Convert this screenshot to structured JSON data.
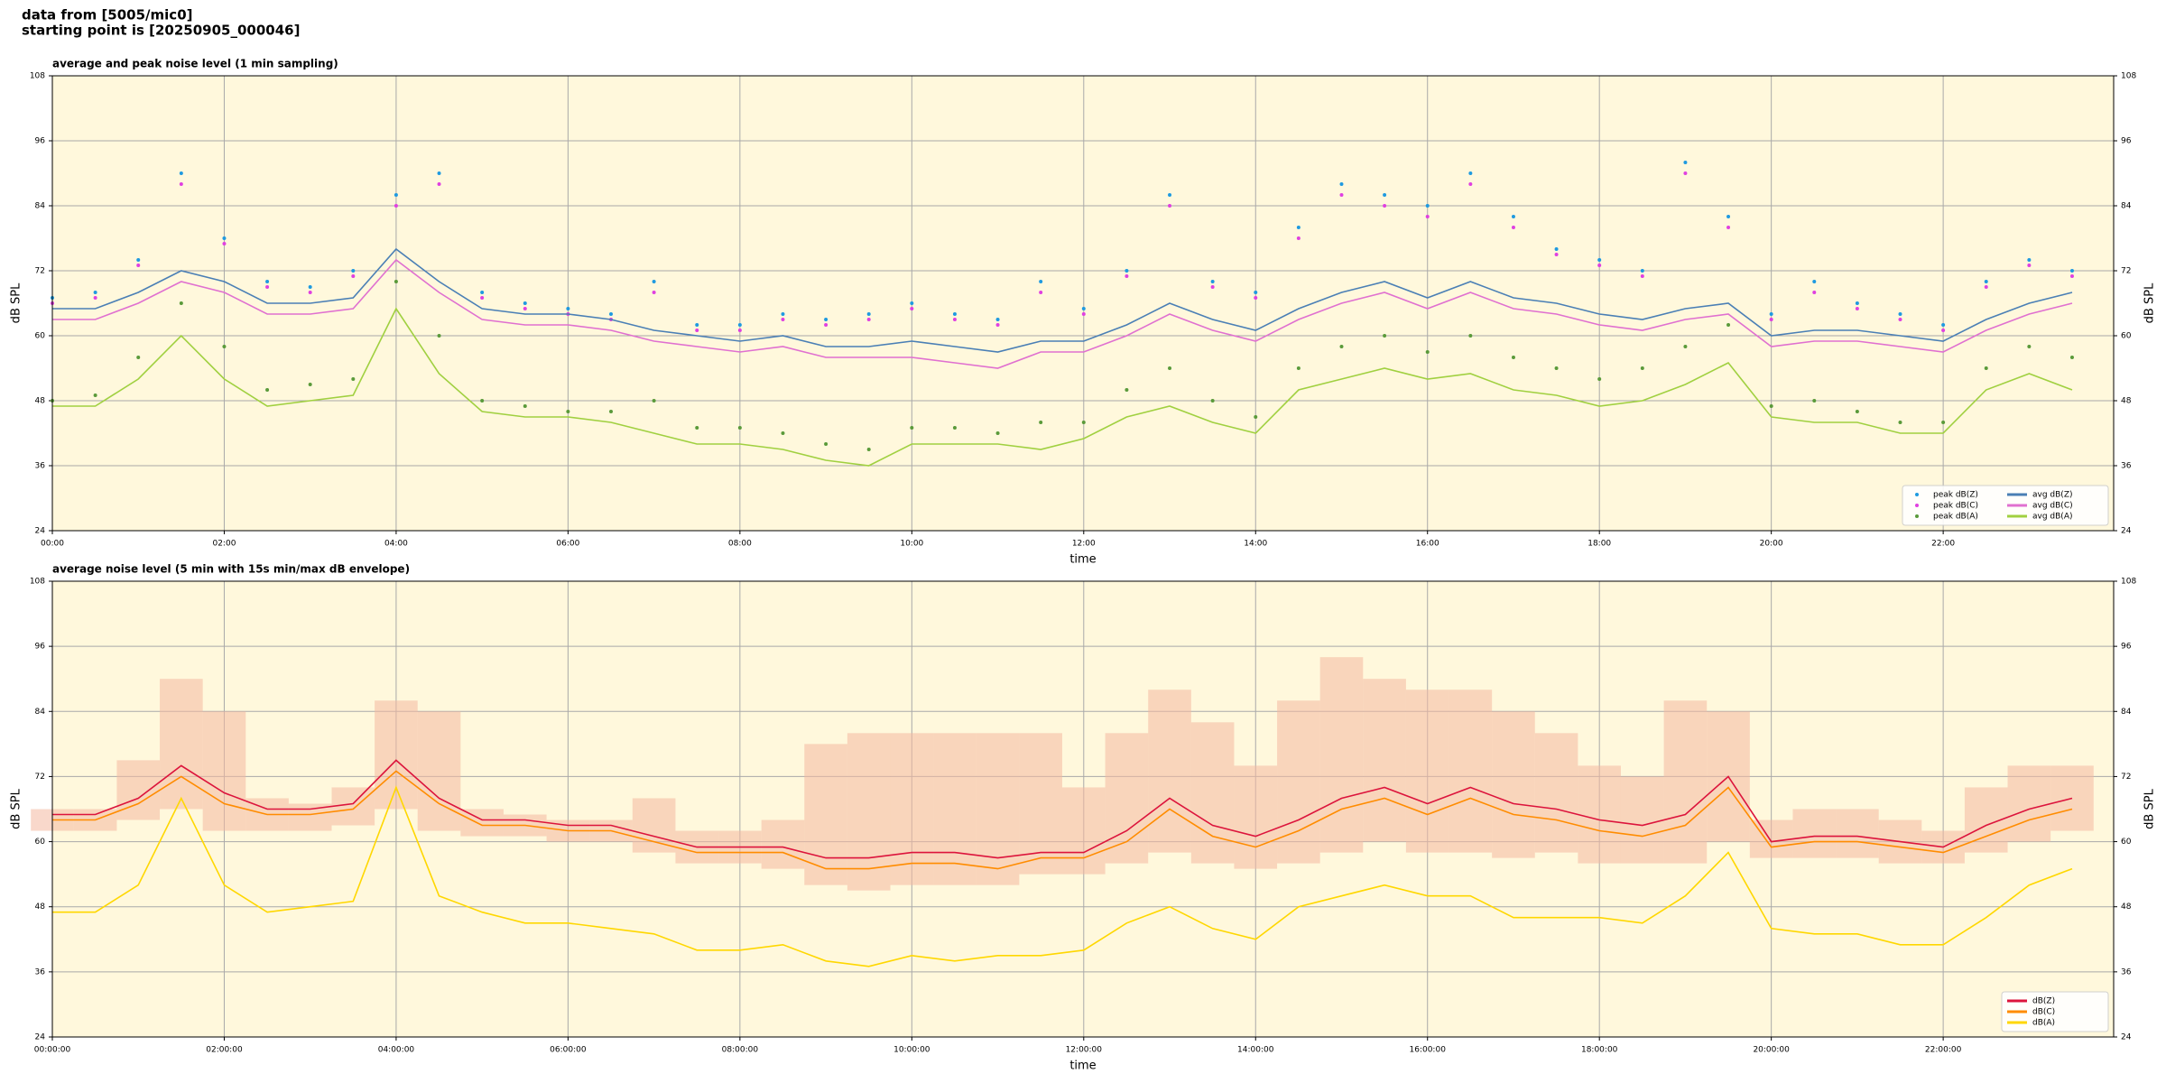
{
  "header": {
    "lines": [
      "data from [5005/mic0]",
      "starting point is [20250905_000046]"
    ]
  },
  "chart_data": [
    {
      "type": "line",
      "title": "average and peak noise level (1 min sampling)",
      "xlabel": "time",
      "ylabel": "dB SPL",
      "x": [
        "00:00",
        "00:30",
        "01:00",
        "01:30",
        "02:00",
        "02:30",
        "03:00",
        "03:30",
        "04:00",
        "04:30",
        "05:00",
        "05:30",
        "06:00",
        "06:30",
        "07:00",
        "07:30",
        "08:00",
        "08:30",
        "09:00",
        "09:30",
        "10:00",
        "10:30",
        "11:00",
        "11:30",
        "12:00",
        "12:30",
        "13:00",
        "13:30",
        "14:00",
        "14:30",
        "15:00",
        "15:30",
        "16:00",
        "16:30",
        "17:00",
        "17:30",
        "18:00",
        "18:30",
        "19:00",
        "19:30",
        "20:00",
        "20:30",
        "21:00",
        "21:30",
        "22:00",
        "22:30",
        "23:00",
        "23:30"
      ],
      "xlim": [
        "00:00",
        "23:59"
      ],
      "xticks": [
        "00:00",
        "02:00",
        "04:00",
        "06:00",
        "08:00",
        "10:00",
        "12:00",
        "14:00",
        "16:00",
        "18:00",
        "20:00",
        "22:00"
      ],
      "ylim": [
        24,
        108
      ],
      "yticks": [
        24,
        36,
        48,
        60,
        72,
        84,
        96,
        108
      ],
      "grid": true,
      "background": "#fff8dc",
      "legend": "lower right",
      "series": [
        {
          "name": "peak dB(Z)",
          "style": "scatter",
          "color": "#1f9ae0",
          "values": [
            67,
            68,
            74,
            90,
            78,
            70,
            69,
            72,
            86,
            90,
            68,
            66,
            65,
            64,
            70,
            62,
            62,
            64,
            63,
            64,
            66,
            64,
            63,
            70,
            65,
            72,
            86,
            70,
            68,
            80,
            88,
            86,
            84,
            90,
            82,
            76,
            74,
            72,
            92,
            82,
            64,
            70,
            66,
            64,
            62,
            70,
            74,
            72
          ]
        },
        {
          "name": "peak dB(C)",
          "style": "scatter",
          "color": "#e040e0",
          "values": [
            66,
            67,
            73,
            88,
            77,
            69,
            68,
            71,
            84,
            88,
            67,
            65,
            64,
            63,
            68,
            61,
            61,
            63,
            62,
            63,
            65,
            63,
            62,
            68,
            64,
            71,
            84,
            69,
            67,
            78,
            86,
            84,
            82,
            88,
            80,
            75,
            73,
            71,
            90,
            80,
            63,
            68,
            65,
            63,
            61,
            69,
            73,
            71
          ]
        },
        {
          "name": "peak dB(A)",
          "style": "scatter",
          "color": "#5a9a3a",
          "values": [
            48,
            49,
            56,
            66,
            58,
            50,
            51,
            52,
            70,
            60,
            48,
            47,
            46,
            46,
            48,
            43,
            43,
            42,
            40,
            39,
            43,
            43,
            42,
            44,
            44,
            50,
            54,
            48,
            45,
            54,
            58,
            60,
            57,
            60,
            56,
            54,
            52,
            54,
            58,
            62,
            47,
            48,
            46,
            44,
            44,
            54,
            58,
            56
          ]
        },
        {
          "name": "avg dB(Z)",
          "style": "line",
          "color": "#4a7fb5",
          "values": [
            65,
            65,
            68,
            72,
            70,
            66,
            66,
            67,
            76,
            70,
            65,
            64,
            64,
            63,
            61,
            60,
            59,
            60,
            58,
            58,
            59,
            58,
            57,
            59,
            59,
            62,
            66,
            63,
            61,
            65,
            68,
            70,
            67,
            70,
            67,
            66,
            64,
            63,
            65,
            66,
            60,
            61,
            61,
            60,
            59,
            63,
            66,
            68
          ]
        },
        {
          "name": "avg dB(C)",
          "style": "line",
          "color": "#e070d0",
          "values": [
            63,
            63,
            66,
            70,
            68,
            64,
            64,
            65,
            74,
            68,
            63,
            62,
            62,
            61,
            59,
            58,
            57,
            58,
            56,
            56,
            56,
            55,
            54,
            57,
            57,
            60,
            64,
            61,
            59,
            63,
            66,
            68,
            65,
            68,
            65,
            64,
            62,
            61,
            63,
            64,
            58,
            59,
            59,
            58,
            57,
            61,
            64,
            66
          ]
        },
        {
          "name": "avg dB(A)",
          "style": "line",
          "color": "#a0d040",
          "values": [
            47,
            47,
            52,
            60,
            52,
            47,
            48,
            49,
            65,
            53,
            46,
            45,
            45,
            44,
            42,
            40,
            40,
            39,
            37,
            36,
            40,
            40,
            40,
            39,
            41,
            45,
            47,
            44,
            42,
            50,
            52,
            54,
            52,
            53,
            50,
            49,
            47,
            48,
            51,
            55,
            45,
            44,
            44,
            42,
            42,
            50,
            53,
            50
          ]
        }
      ]
    },
    {
      "type": "line",
      "title": "average noise level (5 min with 15s min/max dB envelope)",
      "xlabel": "time",
      "ylabel": "dB SPL",
      "x": [
        "00:00:00",
        "00:30:00",
        "01:00:00",
        "01:30:00",
        "02:00:00",
        "02:30:00",
        "03:00:00",
        "03:30:00",
        "04:00:00",
        "04:30:00",
        "05:00:00",
        "05:30:00",
        "06:00:00",
        "06:30:00",
        "07:00:00",
        "07:30:00",
        "08:00:00",
        "08:30:00",
        "09:00:00",
        "09:30:00",
        "10:00:00",
        "10:30:00",
        "11:00:00",
        "11:30:00",
        "12:00:00",
        "12:30:00",
        "13:00:00",
        "13:30:00",
        "14:00:00",
        "14:30:00",
        "15:00:00",
        "15:30:00",
        "16:00:00",
        "16:30:00",
        "17:00:00",
        "17:30:00",
        "18:00:00",
        "18:30:00",
        "19:00:00",
        "19:30:00",
        "20:00:00",
        "20:30:00",
        "21:00:00",
        "21:30:00",
        "22:00:00",
        "22:30:00",
        "23:00:00",
        "23:30:00"
      ],
      "xlim": [
        "00:00:00",
        "23:59:00"
      ],
      "xticks": [
        "00:00:00",
        "02:00:00",
        "04:00:00",
        "06:00:00",
        "08:00:00",
        "10:00:00",
        "12:00:00",
        "14:00:00",
        "16:00:00",
        "18:00:00",
        "20:00:00",
        "22:00:00"
      ],
      "ylim": [
        24,
        108
      ],
      "yticks": [
        24,
        36,
        48,
        60,
        72,
        84,
        96,
        108
      ],
      "grid": true,
      "background": "#fff8dc",
      "legend": "lower right",
      "envelope": {
        "color": "#f4b8a0",
        "min": [
          62,
          62,
          64,
          66,
          62,
          62,
          62,
          63,
          66,
          62,
          61,
          61,
          60,
          60,
          58,
          56,
          56,
          55,
          52,
          51,
          52,
          52,
          52,
          54,
          54,
          56,
          58,
          56,
          55,
          56,
          58,
          60,
          58,
          58,
          57,
          58,
          56,
          56,
          56,
          60,
          57,
          57,
          57,
          56,
          56,
          58,
          60,
          62
        ],
        "max": [
          66,
          66,
          75,
          90,
          84,
          68,
          67,
          70,
          86,
          84,
          66,
          65,
          64,
          64,
          68,
          62,
          62,
          64,
          78,
          80,
          80,
          80,
          80,
          80,
          70,
          80,
          88,
          82,
          74,
          86,
          94,
          90,
          88,
          88,
          84,
          80,
          74,
          72,
          86,
          84,
          64,
          66,
          66,
          64,
          62,
          70,
          74,
          74
        ]
      },
      "series": [
        {
          "name": "dB(Z)",
          "style": "line",
          "color": "#dc143c",
          "values": [
            65,
            65,
            68,
            74,
            69,
            66,
            66,
            67,
            75,
            68,
            64,
            64,
            63,
            63,
            61,
            59,
            59,
            59,
            57,
            57,
            58,
            58,
            57,
            58,
            58,
            62,
            68,
            63,
            61,
            64,
            68,
            70,
            67,
            70,
            67,
            66,
            64,
            63,
            65,
            72,
            60,
            61,
            61,
            60,
            59,
            63,
            66,
            68
          ]
        },
        {
          "name": "dB(C)",
          "style": "line",
          "color": "#ff8c00",
          "values": [
            64,
            64,
            67,
            72,
            67,
            65,
            65,
            66,
            73,
            67,
            63,
            63,
            62,
            62,
            60,
            58,
            58,
            58,
            55,
            55,
            56,
            56,
            55,
            57,
            57,
            60,
            66,
            61,
            59,
            62,
            66,
            68,
            65,
            68,
            65,
            64,
            62,
            61,
            63,
            70,
            59,
            60,
            60,
            59,
            58,
            61,
            64,
            66
          ]
        },
        {
          "name": "dB(A)",
          "style": "line",
          "color": "#ffd700",
          "values": [
            47,
            47,
            52,
            68,
            52,
            47,
            48,
            49,
            70,
            50,
            47,
            45,
            45,
            44,
            43,
            40,
            40,
            41,
            38,
            37,
            39,
            38,
            39,
            39,
            40,
            45,
            48,
            44,
            42,
            48,
            50,
            52,
            50,
            50,
            46,
            46,
            46,
            45,
            50,
            58,
            44,
            43,
            43,
            41,
            41,
            46,
            52,
            55
          ]
        }
      ]
    }
  ]
}
